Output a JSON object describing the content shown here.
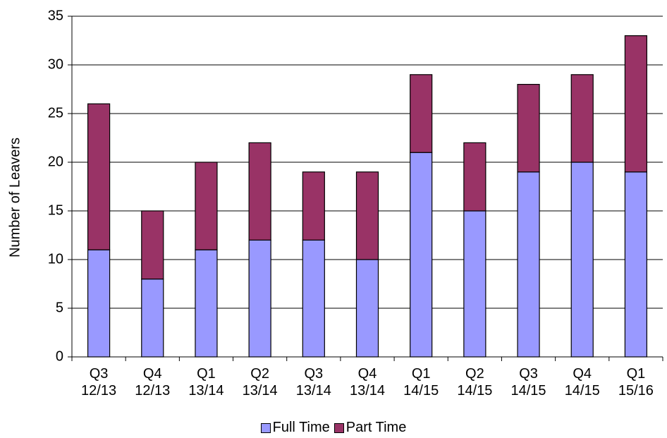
{
  "chart_data": {
    "type": "stacked_bar",
    "y_label": "Number of Leavers",
    "categories": [
      "Q3\n12/13",
      "Q4\n12/13",
      "Q1\n13/14",
      "Q2\n13/14",
      "Q3\n13/14",
      "Q4\n13/14",
      "Q1\n14/15",
      "Q2\n14/15",
      "Q3\n14/15",
      "Q4\n14/15",
      "Q1\n15/16"
    ],
    "series": [
      {
        "name": "Full Time",
        "color": "#9999ff",
        "values": [
          11,
          8,
          11,
          12,
          12,
          10,
          21,
          15,
          19,
          20,
          19
        ]
      },
      {
        "name": "Part Time",
        "color": "#993366",
        "values": [
          15,
          7,
          9,
          10,
          7,
          9,
          8,
          7,
          9,
          9,
          14
        ]
      }
    ],
    "ylim": [
      0,
      35
    ],
    "yticks": [
      0,
      5,
      10,
      15,
      20,
      25,
      30,
      35
    ],
    "grid": true,
    "legend": "bottom"
  }
}
